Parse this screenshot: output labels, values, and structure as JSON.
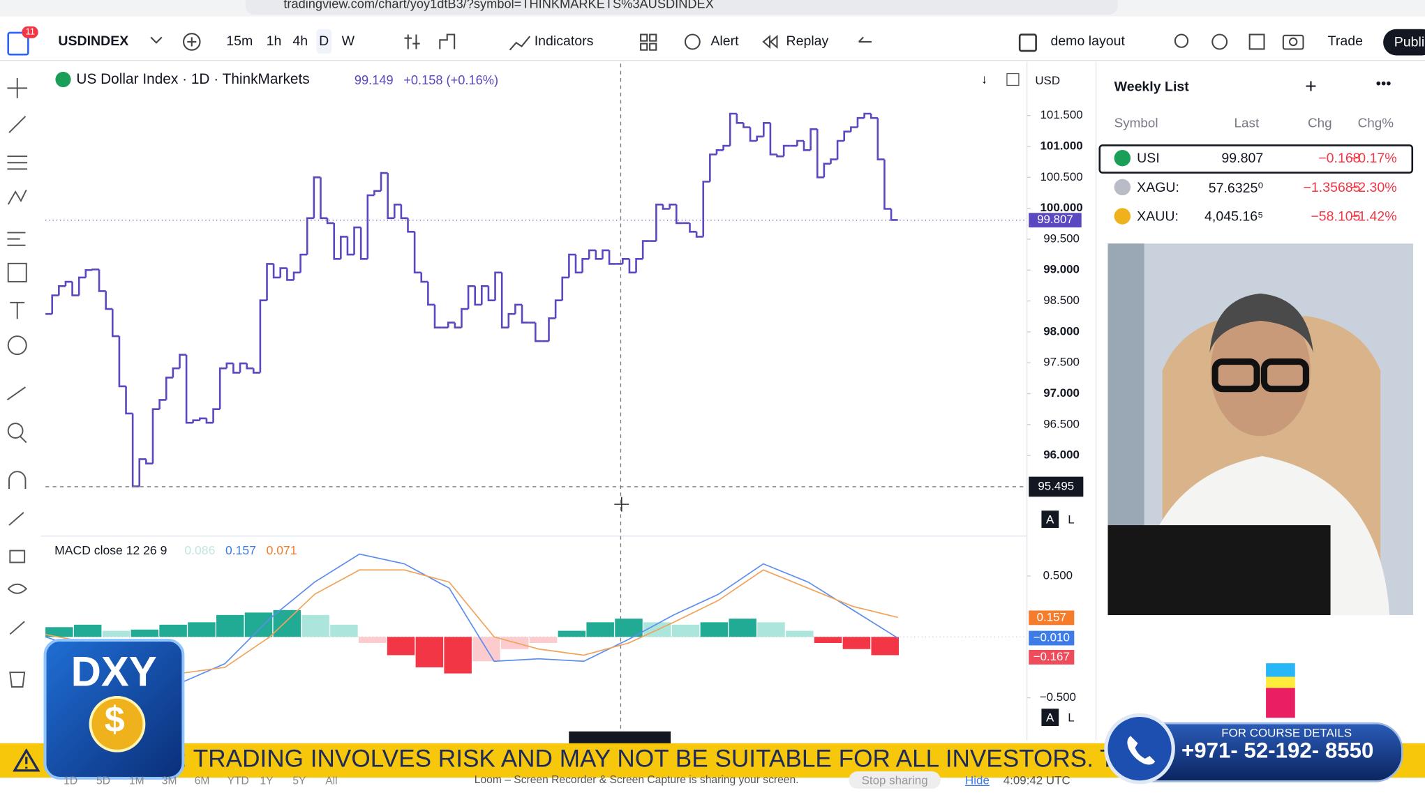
{
  "browser": {
    "url": "tradingview.com/chart/yoy1dtB3/?symbol=THINKMARKETS%3AUSDINDEX"
  },
  "toolbar": {
    "badge": "11",
    "symbol": "USDINDEX",
    "intervals": [
      "15m",
      "1h",
      "4h",
      "D",
      "W"
    ],
    "indicators": "Indicators",
    "alert": "Alert",
    "replay": "Replay",
    "layout": "demo layout",
    "trade": "Trade",
    "publish": "Publi"
  },
  "chart": {
    "title": "US Dollar Index · 1D · ThinkMarkets",
    "price": "99.149",
    "change": "+0.158 (+0.16%)",
    "currency": "USD",
    "price_series": {
      "color": "#5a48c0",
      "ylim": [
        94.77,
        102.34
      ],
      "yticks": [
        {
          "value": 101.5,
          "label": "101.500"
        },
        {
          "value": 101,
          "label": "101.000"
        },
        {
          "value": 100.5,
          "label": "100.500"
        },
        {
          "value": 100,
          "label": "100.000"
        },
        {
          "value": 99.5,
          "label": "99.500"
        },
        {
          "value": 99,
          "label": "99.000"
        },
        {
          "value": 98.5,
          "label": "98.500"
        },
        {
          "value": 98,
          "label": "98.000"
        },
        {
          "value": 97.5,
          "label": "97.500"
        },
        {
          "value": 97,
          "label": "97.000"
        },
        {
          "value": 96.5,
          "label": "96.500"
        },
        {
          "value": 96,
          "label": "96.000"
        }
      ],
      "values": [
        98.29,
        98.59,
        98.74,
        98.81,
        98.59,
        98.88,
        99.0,
        99.01,
        98.66,
        98.37,
        97.93,
        97.12,
        96.68,
        95.5,
        95.94,
        95.87,
        96.75,
        96.9,
        97.26,
        97.41,
        97.63,
        96.53,
        96.57,
        96.6,
        96.53,
        96.75,
        97.41,
        97.49,
        97.34,
        97.49,
        97.41,
        97.34,
        98.51,
        99.1,
        98.88,
        99.03,
        98.84,
        98.96,
        99.25,
        99.84,
        100.5,
        99.84,
        99.76,
        99.18,
        99.54,
        99.25,
        99.69,
        99.18,
        100.21,
        100.28,
        100.57,
        99.84,
        100.06,
        99.84,
        99.62,
        98.96,
        98.81,
        98.44,
        98.07,
        98.07,
        98.15,
        98.07,
        98.37,
        98.74,
        98.44,
        98.74,
        98.51,
        98.96,
        98.07,
        98.29,
        98.44,
        98.15,
        98.15,
        97.85,
        97.85,
        98.22,
        98.51,
        98.88,
        99.25,
        98.96,
        99.18,
        99.32,
        99.18,
        99.32,
        99.1,
        99.1,
        99.18,
        98.96,
        99.18,
        99.47,
        99.47,
        100.06,
        99.99,
        100.06,
        99.76,
        99.76,
        99.62,
        99.54,
        100.43,
        100.87,
        100.94,
        101.01,
        101.53,
        101.38,
        101.31,
        101.09,
        101.16,
        101.38,
        100.87,
        100.84,
        101.01,
        101.01,
        101.09,
        100.94,
        101.28,
        100.5,
        100.72,
        100.79,
        101.09,
        101.24,
        101.31,
        101.46,
        101.53,
        101.46,
        100.79,
        99.99,
        99.81
      ]
    },
    "last_price": {
      "value": 99.807,
      "label": "99.807"
    },
    "crosshair_price": {
      "value": 95.495,
      "label": "95.495"
    },
    "scale_buttons": [
      "A",
      "L"
    ],
    "macd": {
      "title": "MACD close 12 26 9",
      "legend_values": [
        "0.086",
        "0.157",
        "0.071"
      ],
      "ylim": [
        -0.739,
        0.828
      ],
      "yticks": [
        {
          "value": 0.5,
          "label": "0.500"
        },
        {
          "value": -0.5,
          "label": "−0.500"
        }
      ],
      "histogram": {
        "values": [
          0.08,
          0.1,
          0.05,
          0.06,
          0.1,
          0.12,
          0.18,
          0.2,
          0.22,
          0.18,
          0.1,
          -0.05,
          -0.15,
          -0.25,
          -0.3,
          -0.2,
          -0.1,
          -0.05,
          0.05,
          0.12,
          0.15,
          0.12,
          0.1,
          0.12,
          0.15,
          0.12,
          0.05,
          -0.05,
          -0.1,
          -0.15
        ]
      },
      "macd_line": {
        "color": "#5b8def",
        "values": [
          0.0,
          -0.12,
          -0.3,
          -0.38,
          -0.22,
          0.15,
          0.45,
          0.68,
          0.6,
          0.4,
          -0.2,
          -0.18,
          -0.2,
          -0.02,
          0.18,
          0.35,
          0.6,
          0.45,
          0.22,
          -0.01
        ]
      },
      "signal_line": {
        "color": "#f0a35c",
        "values": [
          0.02,
          -0.05,
          -0.2,
          -0.3,
          -0.25,
          0.0,
          0.35,
          0.55,
          0.55,
          0.45,
          0.0,
          -0.1,
          -0.15,
          -0.05,
          0.12,
          0.3,
          0.55,
          0.4,
          0.25,
          0.16
        ]
      },
      "price_labels": [
        {
          "value": 0.157,
          "label": "0.157",
          "color": "#f57c2a"
        },
        {
          "value": -0.01,
          "label": "−0.010",
          "color": "#3d7be8"
        },
        {
          "value": -0.167,
          "label": "−0.167",
          "color": "#f04b5b"
        }
      ]
    }
  },
  "watchlist": {
    "title": "Weekly List",
    "columns": [
      "Symbol",
      "Last",
      "Chg",
      "Chg%"
    ],
    "rows": [
      [
        "USI",
        "99.807",
        "−0.168",
        "−0.17%"
      ],
      [
        "XAGU:",
        "57.6325⁰",
        "−1.35685",
        "−2.30%"
      ],
      [
        "XAUU:",
        "4,045.16⁵",
        "−58.105",
        "−1.42%"
      ]
    ]
  },
  "banner": {
    "text": ": TRADING INVOLVES RISK AND MAY NOT BE SUITABLE FOR ALL INVESTORS. THIS VIDEO",
    "contact_title": "FOR COURSE DETAILS",
    "phone": "+971- 52-192- 8550"
  },
  "logo": {
    "text": "DXY",
    "symbol": "$"
  },
  "footer": {
    "ranges": [
      "1D",
      "5D",
      "1M",
      "3M",
      "6M",
      "YTD",
      "1Y",
      "5Y",
      "All"
    ],
    "share_notice": "Loom – Screen Recorder & Screen Capture is sharing your screen.",
    "stop": "Stop sharing",
    "hide": "Hide",
    "time": "4:09:42 UTC"
  }
}
